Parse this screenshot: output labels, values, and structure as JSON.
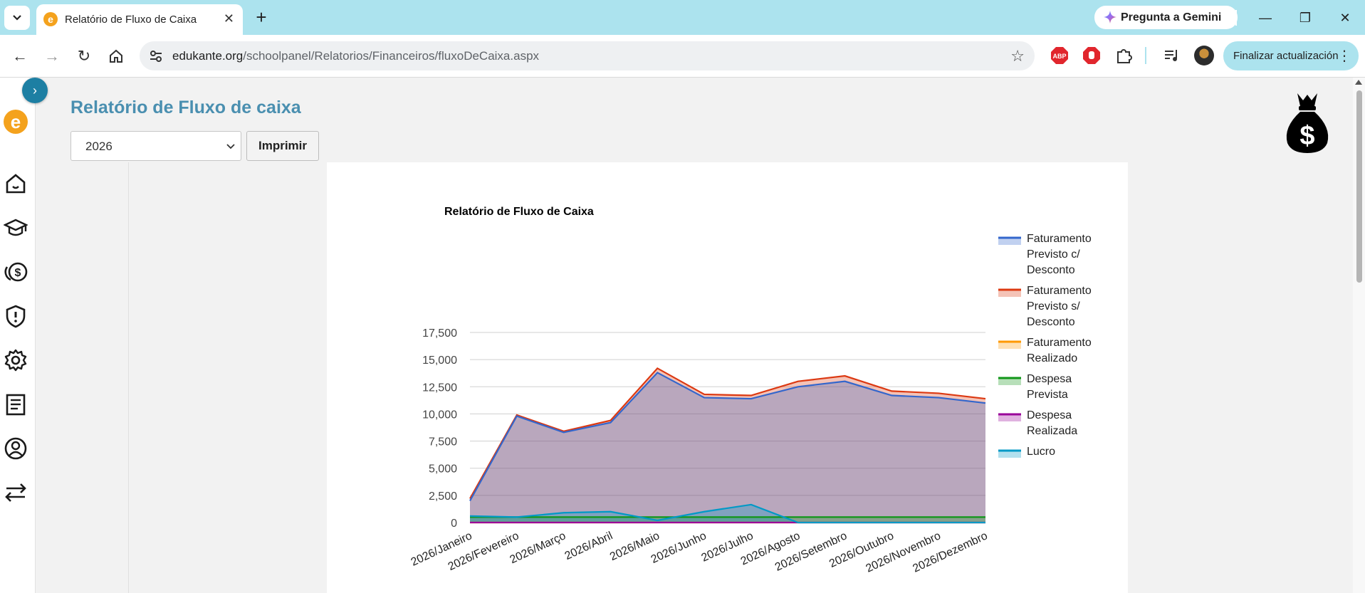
{
  "browser": {
    "tab_title": "Relatório de Fluxo de Caixa",
    "new_tab_symbol": "+",
    "gemini_label": "Pregunta a Gemini",
    "url_host": "edukante.org",
    "url_path": "/schoolpanel/Relatorios/Financeiros/fluxoDeCaixa.aspx",
    "update_label": "Finalizar actualización",
    "extensions": [
      "abp-icon",
      "stop-hand-icon",
      "puzzle-icon",
      "media-icon"
    ]
  },
  "page": {
    "title": "Relatório de Fluxo de caixa",
    "year_selected": "2026",
    "print_label": "Imprimir",
    "sidebar_icons": [
      "home-icon",
      "graduation-cap-icon",
      "coins-icon",
      "shield-icon",
      "gear-icon",
      "document-icon",
      "user-circle-icon",
      "transfer-icon"
    ]
  },
  "colors": {
    "accent": "#4a8fb0",
    "toggle": "#1d7fa3",
    "chrome": "#ace3ee"
  },
  "chart_data": {
    "type": "area",
    "title": "Relatório de Fluxo de Caixa",
    "categories": [
      "2026/Janeiro",
      "2026/Fevereiro",
      "2026/Março",
      "2026/Abril",
      "2026/Maio",
      "2026/Junho",
      "2026/Julho",
      "2026/Agosto",
      "2026/Setembro",
      "2026/Outubro",
      "2026/Novembro",
      "2026/Dezembro"
    ],
    "ylim": [
      0,
      17500
    ],
    "yticks": [
      "0",
      "2,500",
      "5,000",
      "7,500",
      "10,000",
      "12,500",
      "15,000",
      "17,500"
    ],
    "grid": true,
    "legend_position": "right",
    "series": [
      {
        "name": "Faturamento Previsto s/ Desconto",
        "color": "#dc3912",
        "values": [
          2200,
          9900,
          8400,
          9400,
          14200,
          11800,
          11700,
          13000,
          13500,
          12100,
          11900,
          11400
        ]
      },
      {
        "name": "Faturamento Previsto c/ Desconto",
        "color": "#3366cc",
        "values": [
          2000,
          9800,
          8300,
          9200,
          13800,
          11500,
          11400,
          12500,
          13000,
          11700,
          11500,
          11000
        ]
      },
      {
        "name": "Faturamento Realizado",
        "color": "#ff9900",
        "values": [
          0,
          0,
          0,
          0,
          0,
          0,
          0,
          0,
          0,
          0,
          0,
          0
        ]
      },
      {
        "name": "Despesa Prevista",
        "color": "#109618",
        "values": [
          500,
          500,
          500,
          500,
          500,
          500,
          500,
          500,
          500,
          500,
          500,
          500
        ]
      },
      {
        "name": "Despesa Realizada",
        "color": "#990099",
        "values": [
          0,
          0,
          0,
          0,
          0,
          0,
          0,
          0,
          0,
          0,
          0,
          0
        ]
      },
      {
        "name": "Lucro",
        "color": "#0099c6",
        "values": [
          600,
          500,
          900,
          1000,
          200,
          1000,
          1650,
          0,
          0,
          0,
          0,
          0
        ]
      }
    ],
    "legend": [
      {
        "lines": [
          "Faturamento",
          "Previsto c/",
          "Desconto"
        ],
        "color": "#3366cc"
      },
      {
        "lines": [
          "Faturamento",
          "Previsto s/",
          "Desconto"
        ],
        "color": "#dc3912"
      },
      {
        "lines": [
          "Faturamento",
          "Realizado"
        ],
        "color": "#ff9900"
      },
      {
        "lines": [
          "Despesa",
          "Prevista"
        ],
        "color": "#109618"
      },
      {
        "lines": [
          "Despesa",
          "Realizada"
        ],
        "color": "#990099"
      },
      {
        "lines": [
          "Lucro"
        ],
        "color": "#0099c6"
      }
    ]
  }
}
